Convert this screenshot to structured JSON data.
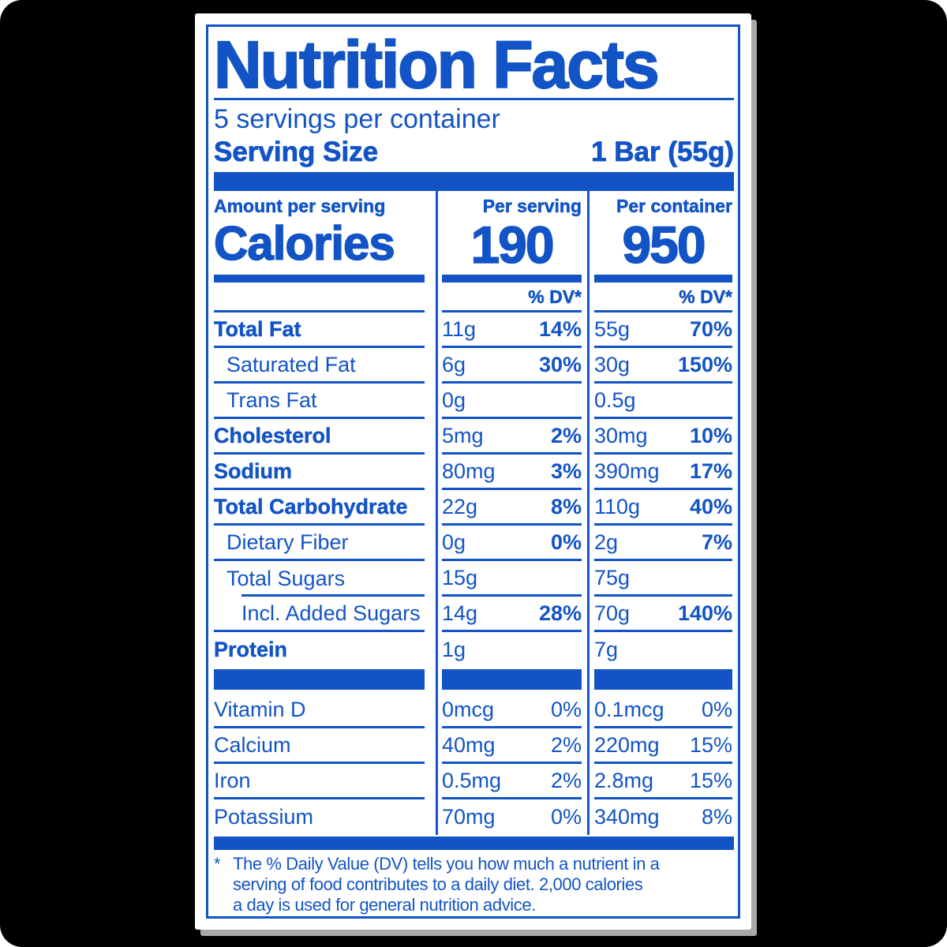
{
  "colors": {
    "blue": "#1254c5",
    "background": "#000000",
    "label_bg": "#ffffff",
    "shadow": "#a9a9a9"
  },
  "header": {
    "title": "Nutrition Facts",
    "servings_per_container": "5 servings per container",
    "serving_size_label": "Serving Size",
    "serving_size_value": "1 Bar (55g)"
  },
  "calories_panel": {
    "amount_per_serving_label": "Amount per serving",
    "calories_label": "Calories",
    "per_serving_heading": "Per serving",
    "per_serving_calories": "190",
    "per_container_heading": "Per container",
    "per_container_calories": "950",
    "daily_value_heading": "% DV*"
  },
  "nutrient_rows": [
    {
      "label": "Total Fat",
      "bold": true,
      "indent": 0,
      "per_serving_amount": "11g",
      "per_serving_dv": "14%",
      "per_container_amount": "55g",
      "per_container_dv": "70%"
    },
    {
      "label": "Saturated Fat",
      "bold": false,
      "indent": 1,
      "per_serving_amount": "6g",
      "per_serving_dv": "30%",
      "per_container_amount": "30g",
      "per_container_dv": "150%"
    },
    {
      "label": "Trans Fat",
      "bold": false,
      "indent": 1,
      "per_serving_amount": "0g",
      "per_serving_dv": "",
      "per_container_amount": "0.5g",
      "per_container_dv": ""
    },
    {
      "label": "Cholesterol",
      "bold": true,
      "indent": 0,
      "per_serving_amount": "5mg",
      "per_serving_dv": "2%",
      "per_container_amount": "30mg",
      "per_container_dv": "10%"
    },
    {
      "label": "Sodium",
      "bold": true,
      "indent": 0,
      "per_serving_amount": "80mg",
      "per_serving_dv": "3%",
      "per_container_amount": "390mg",
      "per_container_dv": "17%"
    },
    {
      "label": "Total Carbohydrate",
      "bold": true,
      "indent": 0,
      "per_serving_amount": "22g",
      "per_serving_dv": "8%",
      "per_container_amount": "110g",
      "per_container_dv": "40%"
    },
    {
      "label": "Dietary Fiber",
      "bold": false,
      "indent": 1,
      "per_serving_amount": "0g",
      "per_serving_dv": "0%",
      "per_container_amount": "2g",
      "per_container_dv": "7%"
    },
    {
      "label": "Total Sugars",
      "bold": false,
      "indent": 1,
      "rule_indent": true,
      "per_serving_amount": "15g",
      "per_serving_dv": "",
      "per_container_amount": "75g",
      "per_container_dv": ""
    },
    {
      "label": "Incl. Added Sugars",
      "bold": false,
      "indent": 2,
      "per_serving_amount": "14g",
      "per_serving_dv": "28%",
      "per_container_amount": "70g",
      "per_container_dv": "140%"
    },
    {
      "label": "Protein",
      "bold": true,
      "indent": 0,
      "last": true,
      "per_serving_amount": "1g",
      "per_serving_dv": "",
      "per_container_amount": "7g",
      "per_container_dv": ""
    }
  ],
  "micronutrient_rows": [
    {
      "label": "Vitamin D",
      "per_serving_amount": "0mcg",
      "per_serving_dv": "0%",
      "per_container_amount": "0.1mcg",
      "per_container_dv": "0%"
    },
    {
      "label": "Calcium",
      "per_serving_amount": "40mg",
      "per_serving_dv": "2%",
      "per_container_amount": "220mg",
      "per_container_dv": "15%"
    },
    {
      "label": "Iron",
      "per_serving_amount": "0.5mg",
      "per_serving_dv": "2%",
      "per_container_amount": "2.8mg",
      "per_container_dv": "15%"
    },
    {
      "label": "Potassium",
      "last": true,
      "per_serving_amount": "70mg",
      "per_serving_dv": "0%",
      "per_container_amount": "340mg",
      "per_container_dv": "8%"
    }
  ],
  "footnote": {
    "marker": "*",
    "lines": [
      "The % Daily Value (DV) tells you how much a nutrient in a",
      "serving of food contributes to a daily diet. 2,000 calories",
      "a day is used for general nutrition advice."
    ]
  }
}
